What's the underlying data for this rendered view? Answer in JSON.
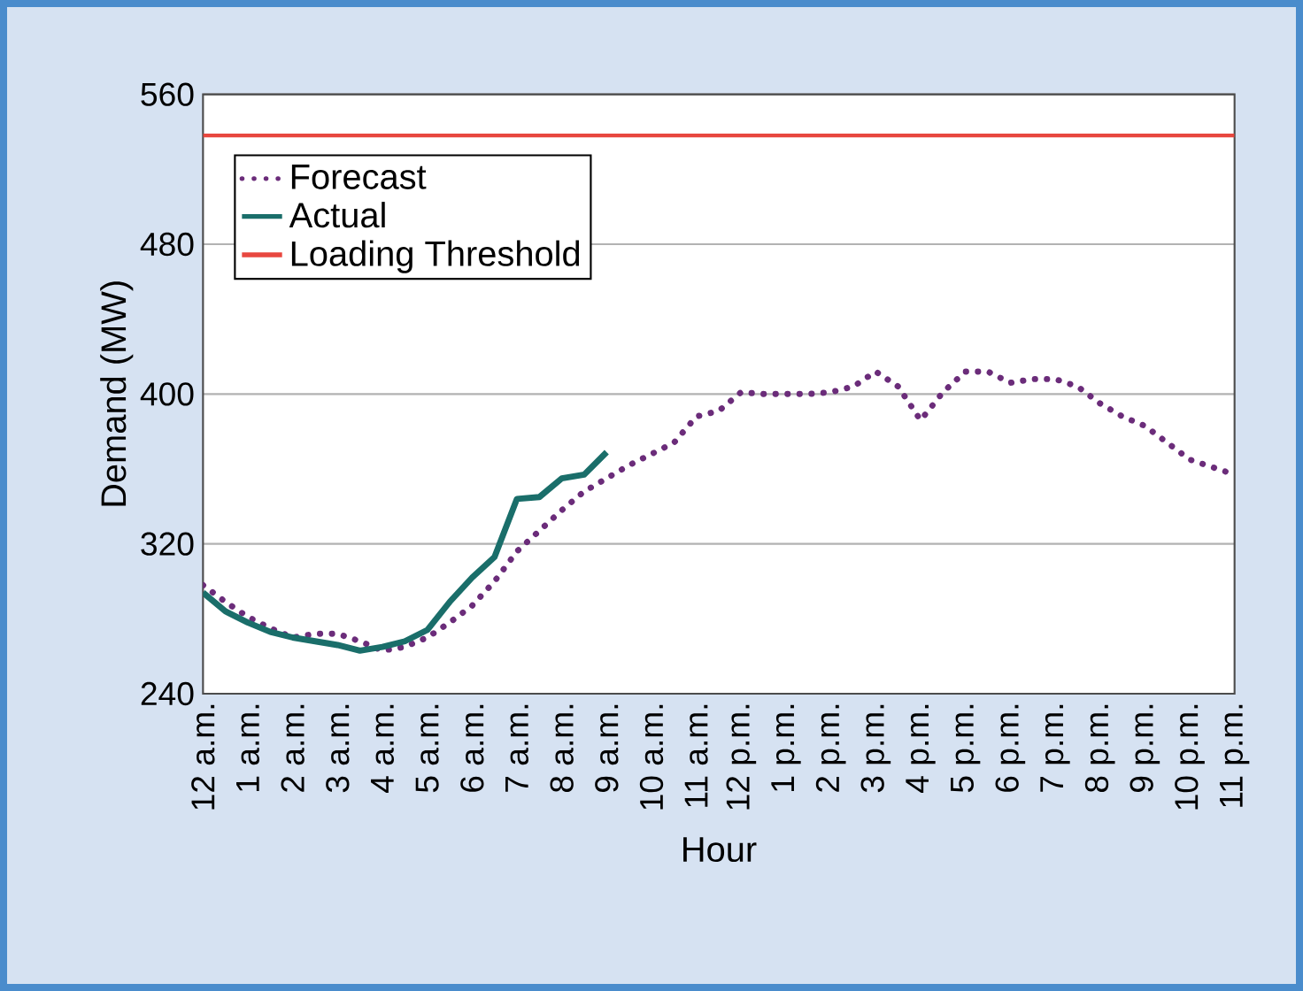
{
  "chart_data": {
    "type": "line",
    "xlabel": "Hour",
    "ylabel": "Demand (MW)",
    "categories": [
      "12 a.m.",
      null,
      "1 a.m.",
      null,
      "2 a.m.",
      null,
      "3 a.m.",
      null,
      "4 a.m.",
      null,
      "5 a.m.",
      null,
      "6 a.m.",
      null,
      "7 a.m.",
      null,
      "8 a.m.",
      null,
      "9 a.m.",
      null,
      "10 a.m.",
      null,
      "11 a.m.",
      null,
      "12 p.m.",
      null,
      "1 p.m.",
      null,
      "2 p.m.",
      null,
      "3 p.m.",
      null,
      "4 p.m.",
      null,
      "5 p.m.",
      null,
      "6 p.m.",
      null,
      "7 p.m.",
      null,
      "8 p.m.",
      null,
      "9 p.m.",
      null,
      "10 p.m.",
      null,
      "11 p.m."
    ],
    "ylim": [
      240,
      560
    ],
    "yticks": [
      240,
      320,
      400,
      480,
      560
    ],
    "grid": "y",
    "legend": "top left",
    "series": [
      {
        "name": "Forecast",
        "color": "#6b2c7a",
        "line_style": "dotted",
        "values": [
          298,
          289,
          281,
          275,
          270,
          272,
          272,
          268,
          263,
          265,
          270,
          278,
          287,
          300,
          316,
          327,
          338,
          348,
          355,
          362,
          368,
          374,
          388,
          391,
          401,
          400,
          400,
          400,
          401,
          404,
          412,
          404,
          386,
          401,
          412,
          412,
          406,
          408,
          408,
          404,
          395,
          388,
          383,
          374,
          365,
          361,
          357
        ]
      },
      {
        "name": "Actual",
        "color": "#1a6e6a",
        "line_style": "solid",
        "values": [
          294,
          284,
          278,
          273,
          270,
          268,
          266,
          263,
          265,
          268,
          274,
          289,
          302,
          313,
          344,
          345,
          355,
          357,
          369,
          null,
          null,
          null,
          null,
          null,
          null,
          null,
          null,
          null,
          null,
          null,
          null,
          null,
          null,
          null,
          null,
          null,
          null,
          null,
          null,
          null,
          null,
          null,
          null,
          null,
          null,
          null,
          null
        ]
      }
    ],
    "ref_lines": [
      {
        "axis": "y",
        "value": 538,
        "label": "Loading Threshold",
        "color": "#e8473f"
      }
    ]
  }
}
